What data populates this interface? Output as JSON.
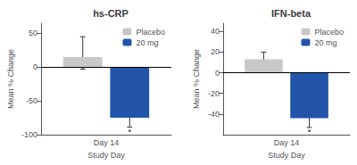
{
  "chart_data": [
    {
      "type": "bar",
      "title": "hs-CRP",
      "xlabel": "Study Day",
      "ylabel": "Mean % Change",
      "categories": [
        "Day 14"
      ],
      "series": [
        {
          "name": "Placebo",
          "color": "#c8c8c8",
          "values": [
            15
          ],
          "err_up": [
            30
          ],
          "err_down": [
            18
          ]
        },
        {
          "name": "20 mg",
          "color": "#2255aa",
          "values": [
            -75
          ],
          "err_up": [
            14
          ],
          "err_down": [
            14
          ]
        }
      ],
      "ylim": [
        -100,
        65
      ],
      "yticks": [
        -100,
        -50,
        0,
        50
      ],
      "grid": false,
      "legend": "upper right",
      "annotations": [
        {
          "text": "*",
          "x": "Day 14",
          "y": -96,
          "series": "20 mg"
        }
      ]
    },
    {
      "type": "bar",
      "title": "IFN-beta",
      "xlabel": "Study Day",
      "ylabel": "Mean % Change",
      "categories": [
        "Day 14"
      ],
      "series": [
        {
          "name": "Placebo",
          "color": "#c8c8c8",
          "values": [
            13
          ],
          "err_up": [
            7
          ],
          "err_down": [
            5
          ]
        },
        {
          "name": "20 mg",
          "color": "#2255aa",
          "values": [
            -44
          ],
          "err_up": [
            9
          ],
          "err_down": [
            9
          ]
        }
      ],
      "ylim": [
        -60,
        48
      ],
      "yticks": [
        -40,
        -20,
        0,
        20,
        40
      ],
      "grid": false,
      "legend": "upper right",
      "annotations": [
        {
          "text": "*",
          "x": "Day 14",
          "y": -57,
          "series": "20 mg"
        }
      ]
    }
  ]
}
